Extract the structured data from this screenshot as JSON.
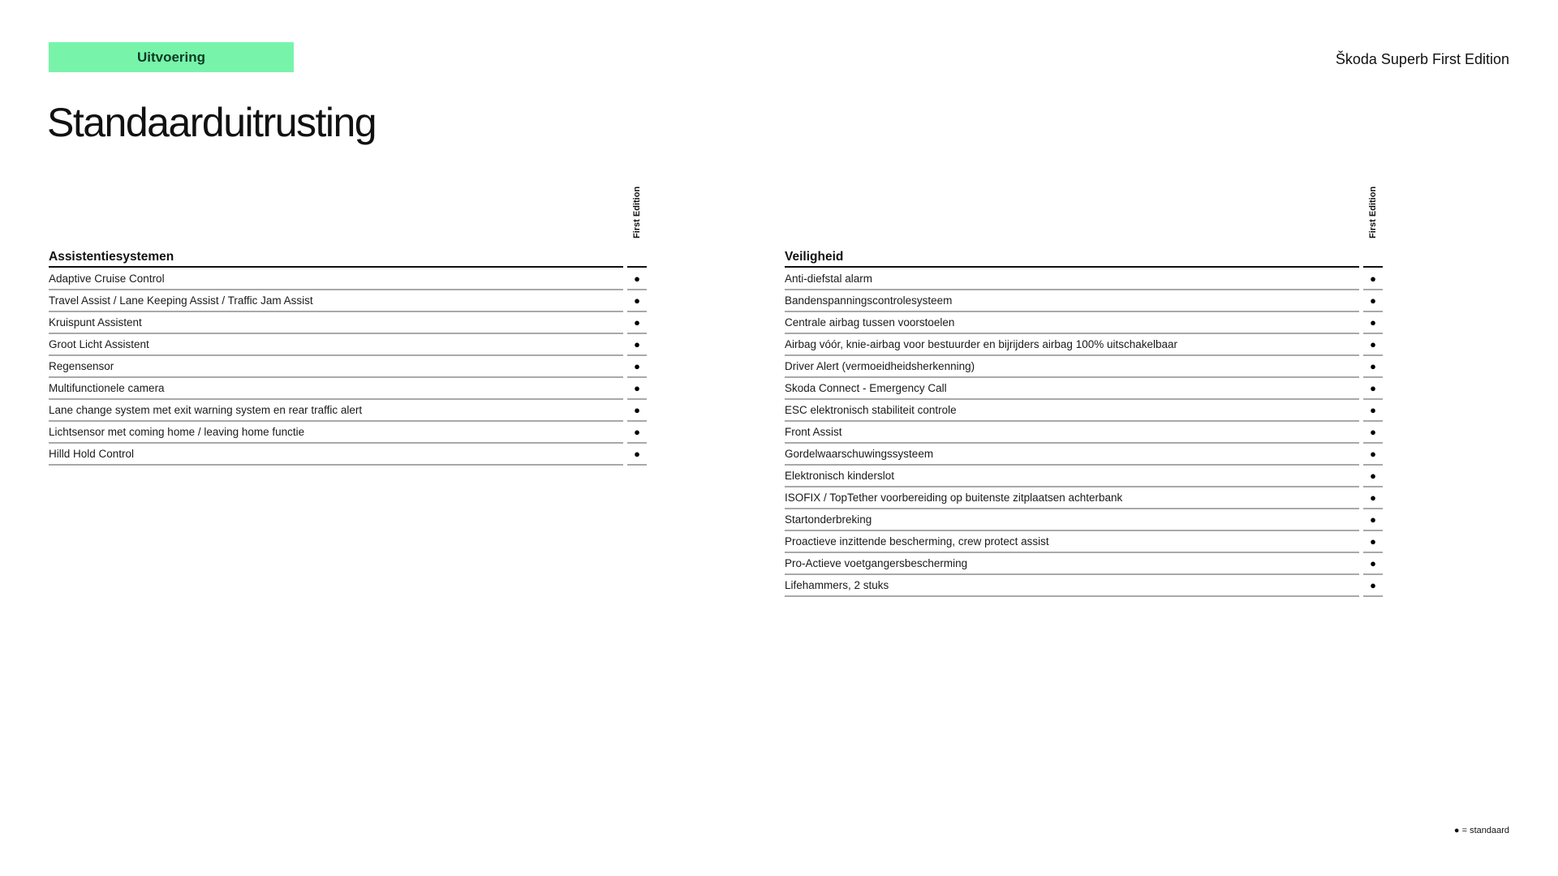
{
  "header": {
    "badge": "Uitvoering",
    "brand": "Škoda Superb First Edition",
    "title": "Standaarduitrusting"
  },
  "tables": [
    {
      "section": "Assistentiesystemen",
      "column": "First Edition",
      "rows": [
        {
          "label": "Adaptive Cruise Control",
          "value": "●"
        },
        {
          "label": "Travel Assist / Lane Keeping Assist / Traffic Jam Assist",
          "value": "●"
        },
        {
          "label": "Kruispunt Assistent",
          "value": "●"
        },
        {
          "label": "Groot Licht Assistent",
          "value": "●"
        },
        {
          "label": "Regensensor",
          "value": "●"
        },
        {
          "label": "Multifunctionele camera",
          "value": "●"
        },
        {
          "label": "Lane change system met exit warning system en rear traffic alert",
          "value": "●"
        },
        {
          "label": "Lichtsensor met coming home / leaving home functie",
          "value": "●"
        },
        {
          "label": "Hilld Hold Control",
          "value": "●"
        }
      ]
    },
    {
      "section": "Veiligheid",
      "column": "First Edition",
      "rows": [
        {
          "label": "Anti-diefstal alarm",
          "value": "●"
        },
        {
          "label": "Bandenspanningscontrolesysteem",
          "value": "●"
        },
        {
          "label": "Centrale airbag tussen voorstoelen",
          "value": "●"
        },
        {
          "label": "Airbag vóór, knie-airbag voor bestuurder en bijrijders airbag 100% uitschakelbaar",
          "value": "●"
        },
        {
          "label": "Driver Alert (vermoeidheidsherkenning)",
          "value": "●"
        },
        {
          "label": "Skoda Connect - Emergency Call",
          "value": "●"
        },
        {
          "label": "ESC elektronisch stabiliteit controle",
          "value": "●"
        },
        {
          "label": "Front Assist",
          "value": "●"
        },
        {
          "label": "Gordelwaarschuwingssysteem",
          "value": "●"
        },
        {
          "label": "Elektronisch kinderslot",
          "value": "●"
        },
        {
          "label": "ISOFIX / TopTether voorbereiding op buitenste zitplaatsen achterbank",
          "value": "●"
        },
        {
          "label": "Startonderbreking",
          "value": "●"
        },
        {
          "label": "Proactieve inzittende bescherming, crew protect assist",
          "value": "●"
        },
        {
          "label": "Pro-Actieve voetgangersbescherming",
          "value": "●"
        },
        {
          "label": "Lifehammers, 2 stuks",
          "value": "●"
        }
      ]
    }
  ],
  "legend": "● = standaard",
  "colors": {
    "badge": "#78f4aa"
  }
}
